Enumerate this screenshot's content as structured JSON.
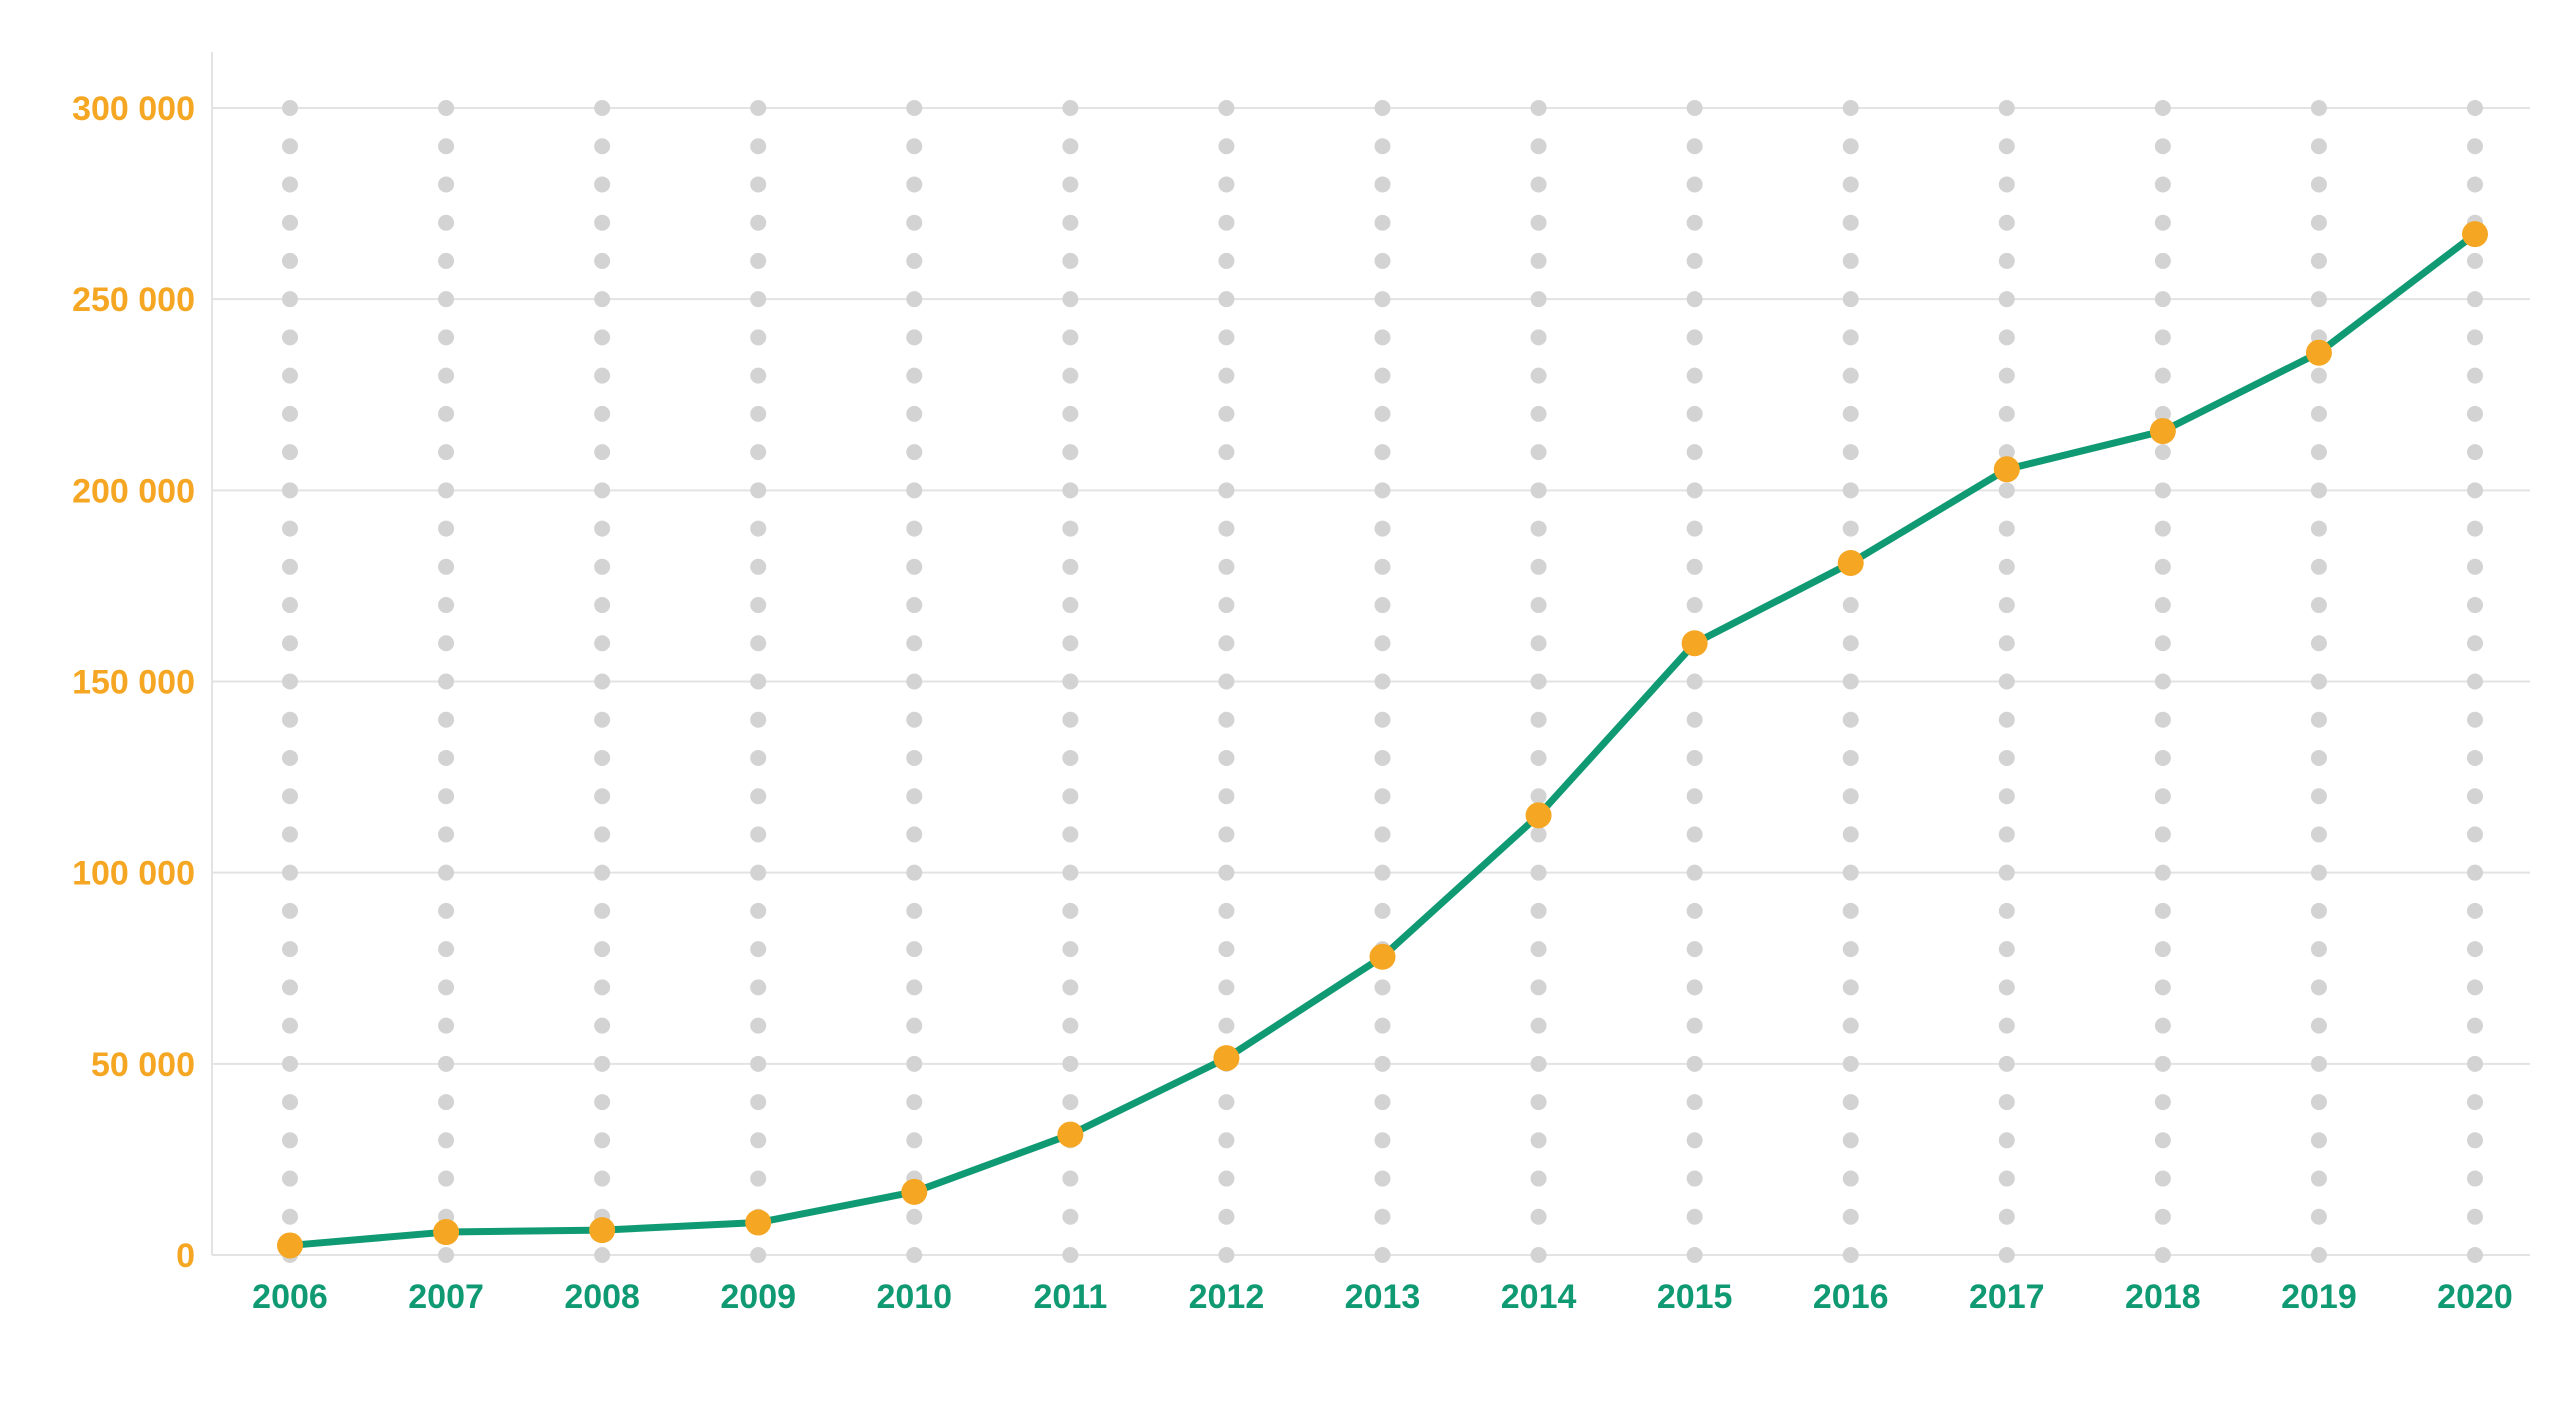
{
  "chart_data": {
    "type": "line",
    "title": "",
    "xlabel": "",
    "ylabel": "",
    "x": [
      "2006",
      "2007",
      "2008",
      "2009",
      "2010",
      "2011",
      "2012",
      "2013",
      "2014",
      "2015",
      "2016",
      "2017",
      "2018",
      "2019",
      "2020"
    ],
    "series": [
      {
        "values": [
          2500,
          6000,
          6500,
          8500,
          16500,
          31500,
          51500,
          78000,
          115000,
          160000,
          181000,
          205500,
          215500,
          236000,
          267000
        ]
      }
    ],
    "ylim": [
      0,
      300000
    ],
    "yticks": [
      0,
      50000,
      100000,
      150000,
      200000,
      250000,
      300000
    ],
    "ytick_labels": [
      "0",
      "50 000",
      "100 000",
      "150 000",
      "200 000",
      "250 000",
      "300 000"
    ],
    "grid": true,
    "legend": "none",
    "colors": {
      "line": "#0f9a73",
      "marker": "#f5a623",
      "ytick_text": "#f5a623",
      "xtick_text": "#0f9a73",
      "gridline": "#e3e3e3",
      "dots": "#d3d3d3"
    }
  }
}
